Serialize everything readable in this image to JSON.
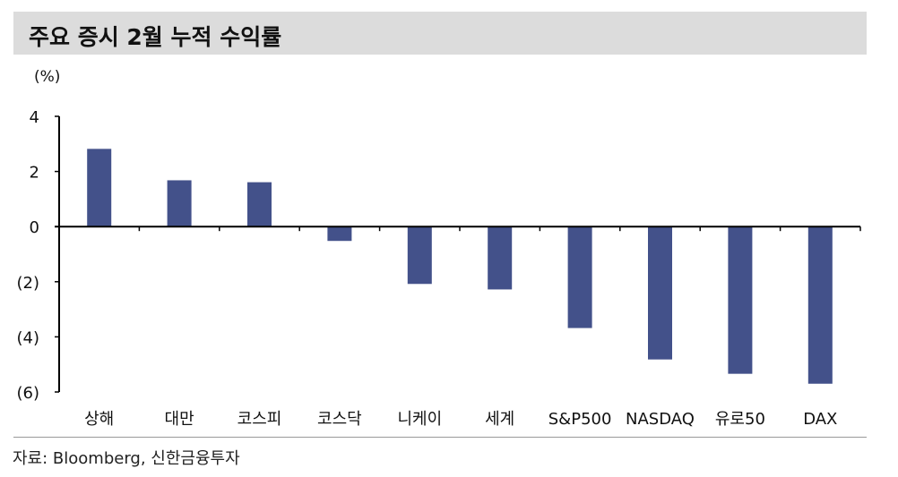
{
  "header": {
    "title": "주요 증시 2월 누적 수익률"
  },
  "source": "자료: Bloomberg, 신한금융투자",
  "chart_data": {
    "type": "bar",
    "title": "주요 증시 2월 누적 수익률",
    "ylabel": "(%)",
    "categories": [
      "상해",
      "대만",
      "코스피",
      "코스닥",
      "니케이",
      "세계",
      "S&P500",
      "NASDAQ",
      "유로50",
      "DAX"
    ],
    "values": [
      2.82,
      1.68,
      1.61,
      -0.52,
      -2.08,
      -2.28,
      -3.68,
      -4.82,
      -5.34,
      -5.7
    ],
    "ylim": [
      -6,
      4
    ],
    "yticks": [
      4,
      2,
      0,
      -2,
      -4,
      -6
    ],
    "ytick_labels": [
      "4",
      "2",
      "0",
      "(2)",
      "(4)",
      "(6)"
    ],
    "grid": false,
    "bar_color": "#43518a"
  }
}
